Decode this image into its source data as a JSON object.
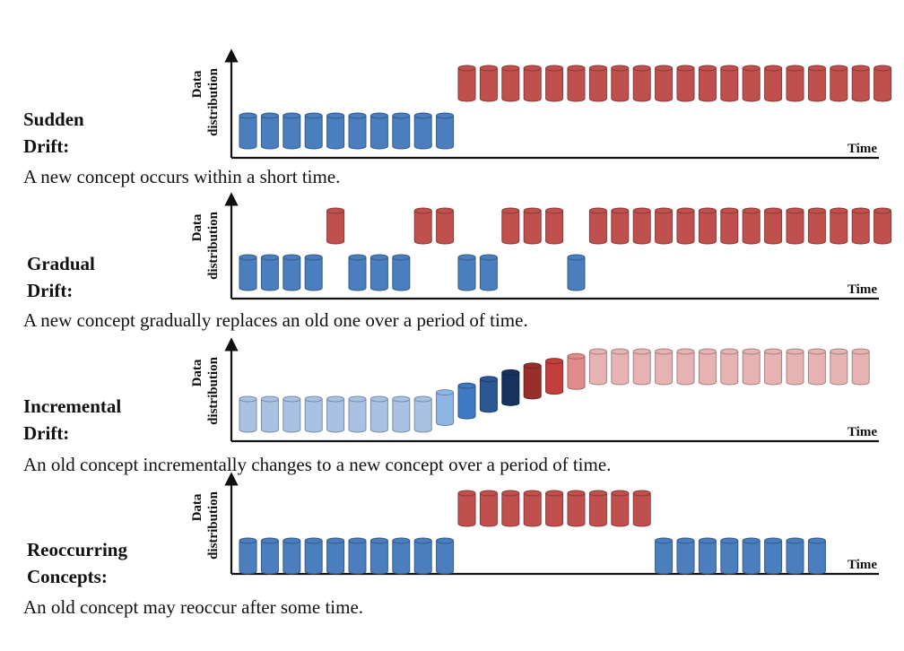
{
  "panels": [
    {
      "label_lines": [
        "Sudden",
        "Drift:"
      ],
      "description": "A new concept occurs within a short time.",
      "y_label_top": "Data",
      "y_label_bottom": "distribution",
      "x_label": "Time",
      "pattern": [
        {
          "cls": "old"
        },
        {
          "cls": "old"
        },
        {
          "cls": "old"
        },
        {
          "cls": "old"
        },
        {
          "cls": "old"
        },
        {
          "cls": "old"
        },
        {
          "cls": "old"
        },
        {
          "cls": "old"
        },
        {
          "cls": "old"
        },
        {
          "cls": "old"
        },
        {
          "cls": "new"
        },
        {
          "cls": "new"
        },
        {
          "cls": "new"
        },
        {
          "cls": "new"
        },
        {
          "cls": "new"
        },
        {
          "cls": "new"
        },
        {
          "cls": "new"
        },
        {
          "cls": "new"
        },
        {
          "cls": "new"
        },
        {
          "cls": "new"
        },
        {
          "cls": "new"
        },
        {
          "cls": "new"
        },
        {
          "cls": "new"
        },
        {
          "cls": "new"
        },
        {
          "cls": "new"
        },
        {
          "cls": "new"
        },
        {
          "cls": "new"
        },
        {
          "cls": "new"
        },
        {
          "cls": "new"
        },
        {
          "cls": "new"
        }
      ]
    },
    {
      "label_lines": [
        "Gradual",
        "Drift:"
      ],
      "description": "A new concept gradually replaces an old one over a period of time.",
      "y_label_top": "Data",
      "y_label_bottom": "distribution",
      "x_label": "Time",
      "pattern": [
        {
          "cls": "old"
        },
        {
          "cls": "old"
        },
        {
          "cls": "old"
        },
        {
          "cls": "old"
        },
        {
          "cls": "new"
        },
        {
          "cls": "old"
        },
        {
          "cls": "old"
        },
        {
          "cls": "old"
        },
        {
          "cls": "new"
        },
        {
          "cls": "new"
        },
        {
          "cls": "old"
        },
        {
          "cls": "old"
        },
        {
          "cls": "new"
        },
        {
          "cls": "new"
        },
        {
          "cls": "new"
        },
        {
          "cls": "old"
        },
        {
          "cls": "new"
        },
        {
          "cls": "new"
        },
        {
          "cls": "new"
        },
        {
          "cls": "new"
        },
        {
          "cls": "new"
        },
        {
          "cls": "new"
        },
        {
          "cls": "new"
        },
        {
          "cls": "new"
        },
        {
          "cls": "new"
        },
        {
          "cls": "new"
        },
        {
          "cls": "new"
        },
        {
          "cls": "new"
        },
        {
          "cls": "new"
        },
        {
          "cls": "new"
        }
      ]
    },
    {
      "label_lines": [
        "Incremental",
        "Drift:"
      ],
      "description": "An old concept incrementally changes to a new concept over a period of time.",
      "y_label_top": "Data",
      "y_label_bottom": "distribution",
      "x_label": "Time",
      "pattern": [
        {
          "cls": "old-light",
          "level": 0
        },
        {
          "cls": "old-light",
          "level": 0
        },
        {
          "cls": "old-light",
          "level": 0
        },
        {
          "cls": "old-light",
          "level": 0
        },
        {
          "cls": "old-light",
          "level": 0
        },
        {
          "cls": "old-light",
          "level": 0
        },
        {
          "cls": "old-light",
          "level": 0
        },
        {
          "cls": "old-light",
          "level": 0
        },
        {
          "cls": "old-light",
          "level": 0
        },
        {
          "cls": "trans-1",
          "level": 0.14
        },
        {
          "cls": "trans-2",
          "level": 0.28
        },
        {
          "cls": "trans-3",
          "level": 0.42
        },
        {
          "cls": "trans-4",
          "level": 0.56
        },
        {
          "cls": "trans-5",
          "level": 0.7
        },
        {
          "cls": "trans-6",
          "level": 0.8
        },
        {
          "cls": "trans-7",
          "level": 0.9
        },
        {
          "cls": "new-light",
          "level": 1
        },
        {
          "cls": "new-light",
          "level": 1
        },
        {
          "cls": "new-light",
          "level": 1
        },
        {
          "cls": "new-light",
          "level": 1
        },
        {
          "cls": "new-light",
          "level": 1
        },
        {
          "cls": "new-light",
          "level": 1
        },
        {
          "cls": "new-light",
          "level": 1
        },
        {
          "cls": "new-light",
          "level": 1
        },
        {
          "cls": "new-light",
          "level": 1
        },
        {
          "cls": "new-light",
          "level": 1
        },
        {
          "cls": "new-light",
          "level": 1
        },
        {
          "cls": "new-light",
          "level": 1
        },
        {
          "cls": "new-light",
          "level": 1
        }
      ]
    },
    {
      "label_lines": [
        "Reoccurring",
        "Concepts:"
      ],
      "description": "An old concept may reoccur after some time.",
      "y_label_top": "Data",
      "y_label_bottom": "distribution",
      "x_label": "Time",
      "pattern": [
        {
          "cls": "old"
        },
        {
          "cls": "old"
        },
        {
          "cls": "old"
        },
        {
          "cls": "old"
        },
        {
          "cls": "old"
        },
        {
          "cls": "old"
        },
        {
          "cls": "old"
        },
        {
          "cls": "old"
        },
        {
          "cls": "old"
        },
        {
          "cls": "old"
        },
        {
          "cls": "new"
        },
        {
          "cls": "new"
        },
        {
          "cls": "new"
        },
        {
          "cls": "new"
        },
        {
          "cls": "new"
        },
        {
          "cls": "new"
        },
        {
          "cls": "new"
        },
        {
          "cls": "new"
        },
        {
          "cls": "new"
        },
        {
          "cls": "old"
        },
        {
          "cls": "old"
        },
        {
          "cls": "old"
        },
        {
          "cls": "old"
        },
        {
          "cls": "old"
        },
        {
          "cls": "old"
        },
        {
          "cls": "old"
        },
        {
          "cls": "old"
        }
      ]
    }
  ],
  "colors": {
    "old": "#4a7ebf",
    "old_light": "#a9c2e3",
    "new": "#c0504d",
    "new_light": "#e6b3b2",
    "trans_1": "#8fb5e3",
    "trans_2": "#3f79c4",
    "trans_3": "#2b5795",
    "trans_4": "#16335f",
    "trans_5": "#9a2e2c",
    "trans_6": "#c43e3b",
    "trans_7": "#e08c8a"
  }
}
